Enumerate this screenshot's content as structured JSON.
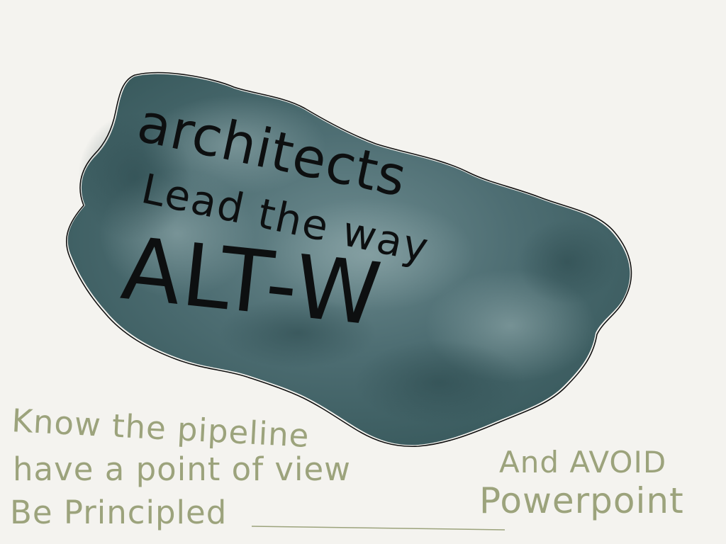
{
  "sketch": {
    "cloud_text": {
      "line1": "architects",
      "line2": "Lead the way",
      "line3": "ALT-W"
    },
    "notes": {
      "line1": "Know the pipeline",
      "line2": "have a point of view",
      "line3": "Be Principled"
    },
    "aside": {
      "line1": "And AVOID",
      "line2": "Powerpoint"
    }
  },
  "colors": {
    "paper": "#f4f3ef",
    "cloud": "#3f6166",
    "ink": "#0d0f10",
    "olive_ink": "#9ca37c"
  }
}
